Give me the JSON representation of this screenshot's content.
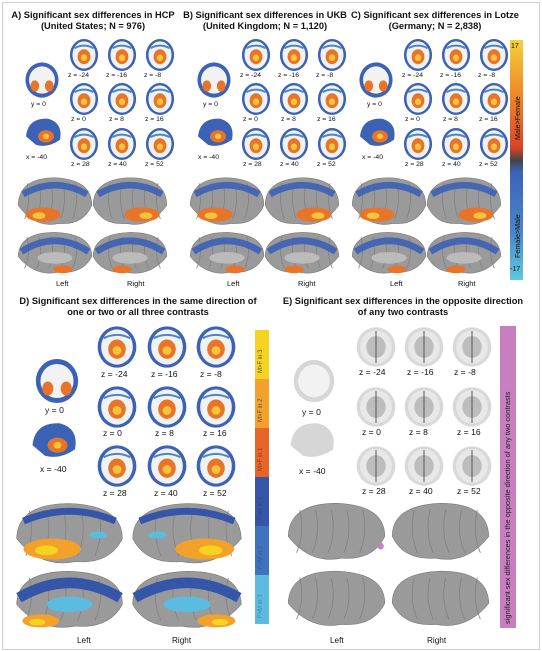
{
  "panels": {
    "a": {
      "title_line1": "A) Significant sex differences in HCP",
      "title_line2": "(United States; N = 976)"
    },
    "b": {
      "title_line1": "B) Significant sex differences in UKB",
      "title_line2": "(United Kingdom; N = 1,120)"
    },
    "c": {
      "title_line1": "C) Significant sex differences in Lotze",
      "title_line2": "(Germany; N = 2,838)"
    },
    "d": {
      "title_line1": "D) Significant sex differences in the same direction of",
      "title_line2": "one or two or all three contrasts"
    },
    "e": {
      "title_line1": "E) Significant sex differences in the opposite direction",
      "title_line2": "of any two contrasts"
    }
  },
  "slice_labels": {
    "y": "y = 0",
    "x": "x = -40",
    "z": [
      "z = -24",
      "z = -16",
      "z = -8",
      "z = 0",
      "z = 8",
      "z = 16",
      "z = 28",
      "z = 40",
      "z = 52"
    ]
  },
  "hemispheres": {
    "left": "Left",
    "right": "Right"
  },
  "colorbar_top": {
    "max": "17",
    "min": "-17",
    "zero_mark": "0",
    "label_male_female": "Male>Female",
    "label_female_male": "Female>Male",
    "colors": [
      "#f2d13b",
      "#f08a2a",
      "#d8432a",
      "#3b63b8",
      "#4a86c8",
      "#5ec9e0"
    ]
  },
  "colorbar_d": {
    "segments": [
      "M>F in 3",
      "M>F in 2",
      "M>F in 1",
      "F>M in 1",
      "F>M in 2",
      "F>M in 3"
    ],
    "colors": [
      "#f5d31f",
      "#f3a12a",
      "#e8652a",
      "#3556a8",
      "#3f73bf",
      "#5bbce0"
    ]
  },
  "colorbar_e": {
    "label": "significant sex differences in the opposite direction of any two contrasts",
    "color": "#c77fc0"
  },
  "colors": {
    "brain_gray": "#9a9a9a",
    "blue": "#3c62b6",
    "orange": "#e8742a",
    "yellow": "#f4c43a"
  }
}
